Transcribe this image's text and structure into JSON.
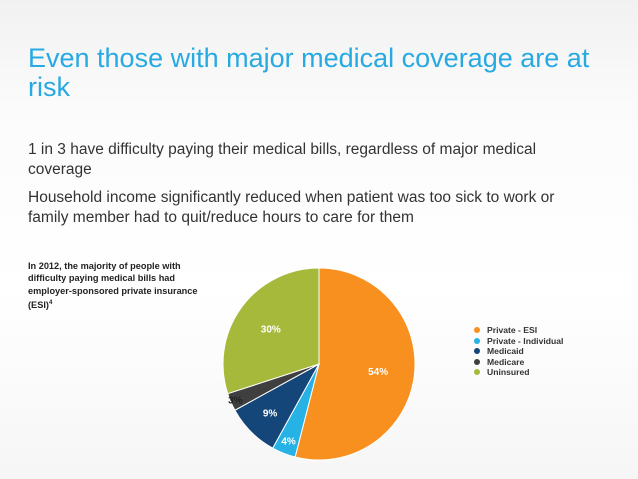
{
  "slide": {
    "title": "Even those with major medical coverage are at risk",
    "bullets": [
      "1 in 3 have difficulty paying their medical bills, regardless of major medical coverage",
      "Household income significantly reduced when patient was too sick to work or family member had to quit/reduce hours to care for them"
    ],
    "caption": "In 2012, the majority of people with difficulty paying medical bills had employer-sponsored private insurance (ESI)",
    "caption_footnote": "4",
    "colors": {
      "title": "#27a9e1",
      "text": "#333333"
    }
  },
  "chart_data": {
    "type": "pie",
    "title": "",
    "labels": [
      "Private - ESI",
      "Private - Individual",
      "Medicaid",
      "Medicare",
      "Uninsured"
    ],
    "values": [
      54,
      4,
      9,
      3,
      30
    ],
    "value_labels": [
      "54%",
      "4%",
      "9%",
      "3%",
      "30%"
    ],
    "colors": [
      "#f7901e",
      "#27b2e6",
      "#15467a",
      "#3f3f3f",
      "#a6b93a"
    ],
    "label_colors": [
      "#ffffff",
      "#ffffff",
      "#ffffff",
      "#222222",
      "#ffffff"
    ],
    "legend_position": "right"
  }
}
